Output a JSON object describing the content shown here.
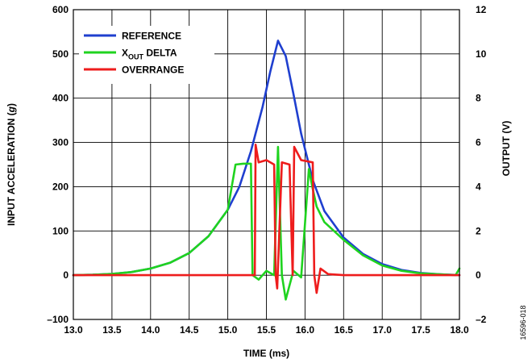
{
  "chart_data": {
    "type": "line",
    "title": "",
    "xlabel": "TIME (ms)",
    "ylabel": "INPUT ACCELERATION (g)",
    "ylabel_italic_part": "g",
    "y2label": "OUTPUT (V)",
    "xlim": [
      13.0,
      18.0
    ],
    "ylim": [
      -100,
      600
    ],
    "y2lim": [
      -2,
      12
    ],
    "x_ticks": [
      "13.0",
      "13.5",
      "14.0",
      "14.5",
      "15.0",
      "15.5",
      "16.0",
      "16.5",
      "17.0",
      "17.5",
      "18.0"
    ],
    "y_ticks": [
      "–100",
      "0",
      "100",
      "200",
      "300",
      "400",
      "500",
      "600"
    ],
    "y2_ticks": [
      "–2",
      "0",
      "2",
      "4",
      "6",
      "8",
      "10",
      "12"
    ],
    "grid": true,
    "legend_position": "top-left",
    "figure_id": "16596-018",
    "series": [
      {
        "name": "REFERENCE",
        "color": "#1f3fcf",
        "axis": "left",
        "x": [
          13.0,
          13.25,
          13.5,
          13.75,
          14.0,
          14.25,
          14.5,
          14.75,
          15.0,
          15.15,
          15.3,
          15.45,
          15.55,
          15.65,
          15.75,
          15.85,
          15.95,
          16.1,
          16.25,
          16.5,
          16.75,
          17.0,
          17.25,
          17.5,
          17.75,
          18.0
        ],
        "y": [
          0,
          1,
          3,
          7,
          15,
          28,
          50,
          88,
          148,
          200,
          280,
          380,
          460,
          530,
          495,
          410,
          320,
          215,
          145,
          85,
          48,
          25,
          12,
          5,
          2,
          0
        ]
      },
      {
        "name": "XOUT DELTA",
        "name_main": "X",
        "name_sub": "OUT",
        "name_rest": " DELTA",
        "color": "#1fd31f",
        "axis": "left",
        "x": [
          13.0,
          13.25,
          13.5,
          13.75,
          14.0,
          14.25,
          14.5,
          14.75,
          15.0,
          15.1,
          15.2,
          15.3,
          15.32,
          15.4,
          15.5,
          15.6,
          15.65,
          15.7,
          15.75,
          15.85,
          15.95,
          16.05,
          16.1,
          16.15,
          16.25,
          16.5,
          16.75,
          17.0,
          17.25,
          17.5,
          17.75,
          17.95,
          18.0
        ],
        "y": [
          0,
          1,
          3,
          7,
          15,
          28,
          50,
          88,
          148,
          250,
          252,
          252,
          0,
          -10,
          10,
          0,
          290,
          0,
          -55,
          10,
          -5,
          240,
          195,
          155,
          120,
          80,
          45,
          22,
          10,
          4,
          2,
          0,
          15
        ]
      },
      {
        "name": "OVERRANGE",
        "color": "#ee1c1c",
        "axis": "right",
        "x": [
          13.0,
          14.0,
          15.0,
          15.35,
          15.36,
          15.4,
          15.5,
          15.6,
          15.62,
          15.64,
          15.7,
          15.8,
          15.84,
          15.86,
          15.95,
          16.1,
          16.12,
          16.15,
          16.2,
          16.3,
          16.5,
          17.0,
          17.5,
          18.0
        ],
        "y": [
          0,
          0,
          0,
          0,
          5.9,
          5.1,
          5.2,
          5.0,
          0,
          -0.6,
          5.1,
          5.0,
          0,
          5.8,
          5.2,
          5.1,
          0,
          -0.8,
          0.3,
          0.05,
          0,
          0,
          0,
          0
        ]
      }
    ]
  }
}
